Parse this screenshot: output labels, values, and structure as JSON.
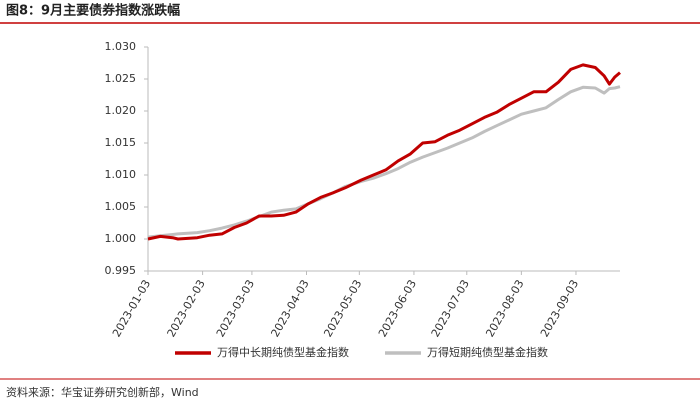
{
  "title": "图8：9月主要债券指数涨跌幅",
  "source": "资料来源：华宝证券研究创新部，Wind",
  "chart_data": {
    "type": "line",
    "x": [
      "2023-01-03",
      "2023-01-10",
      "2023-01-17",
      "2023-01-20",
      "2023-01-31",
      "2023-02-07",
      "2023-02-14",
      "2023-02-21",
      "2023-02-28",
      "2023-03-07",
      "2023-03-14",
      "2023-03-21",
      "2023-03-28",
      "2023-04-04",
      "2023-04-11",
      "2023-04-18",
      "2023-04-25",
      "2023-05-04",
      "2023-05-11",
      "2023-05-18",
      "2023-05-25",
      "2023-06-01",
      "2023-06-08",
      "2023-06-15",
      "2023-06-22",
      "2023-06-29",
      "2023-07-06",
      "2023-07-13",
      "2023-07-20",
      "2023-07-27",
      "2023-08-03",
      "2023-08-10",
      "2023-08-17",
      "2023-08-24",
      "2023-08-31",
      "2023-09-07",
      "2023-09-14",
      "2023-09-19",
      "2023-09-22",
      "2023-09-25",
      "2023-09-28"
    ],
    "series": [
      {
        "name": "万得中长期纯债型基金指数",
        "color": "#c00000",
        "values": [
          1.0,
          1.0004,
          1.0002,
          1.0,
          1.0002,
          1.0006,
          1.0008,
          1.0018,
          1.0025,
          1.0036,
          1.0036,
          1.0037,
          1.0042,
          1.0055,
          1.0065,
          1.0072,
          1.008,
          1.0092,
          1.01,
          1.0108,
          1.0122,
          1.0133,
          1.015,
          1.0152,
          1.0162,
          1.017,
          1.018,
          1.019,
          1.0198,
          1.021,
          1.022,
          1.023,
          1.023,
          1.0245,
          1.0265,
          1.0272,
          1.0268,
          1.0255,
          1.0242,
          1.0253,
          1.026
        ]
      },
      {
        "name": "万得短期纯债型基金指数",
        "color": "#bfbfbf",
        "values": [
          1.0003,
          1.0005,
          1.0007,
          1.0008,
          1.001,
          1.0013,
          1.0017,
          1.0022,
          1.0028,
          1.0035,
          1.0042,
          1.0045,
          1.0047,
          1.0055,
          1.0063,
          1.0072,
          1.0082,
          1.009,
          1.0095,
          1.0102,
          1.011,
          1.012,
          1.0128,
          1.0135,
          1.0142,
          1.015,
          1.0158,
          1.0168,
          1.0177,
          1.0186,
          1.0195,
          1.02,
          1.0205,
          1.0218,
          1.023,
          1.0237,
          1.0236,
          1.0228,
          1.0235,
          1.0236,
          1.0238
        ]
      }
    ],
    "xlim": [
      "2023-01-03",
      "2023-09-28"
    ],
    "xticks": [
      "2023-01-03",
      "2023-02-03",
      "2023-03-03",
      "2023-04-03",
      "2023-05-03",
      "2023-06-03",
      "2023-07-03",
      "2023-08-03",
      "2023-09-03"
    ],
    "ylim": [
      0.995,
      1.03
    ],
    "yticks": [
      {
        "value": 0.995,
        "label": "0.995"
      },
      {
        "value": 1.0,
        "label": "1.000"
      },
      {
        "value": 1.005,
        "label": "1.005"
      },
      {
        "value": 1.01,
        "label": "1.010"
      },
      {
        "value": 1.015,
        "label": "1.015"
      },
      {
        "value": 1.02,
        "label": "1.020"
      },
      {
        "value": 1.025,
        "label": "1.025"
      },
      {
        "value": 1.03,
        "label": "1.030"
      }
    ],
    "legend": "bottom"
  }
}
